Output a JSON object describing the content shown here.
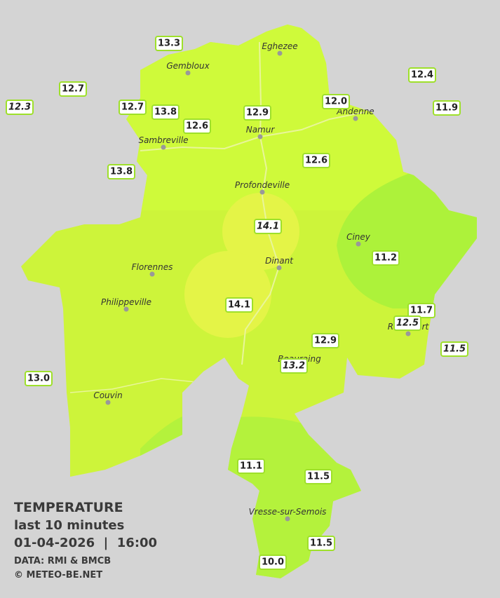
{
  "legend": {
    "title": "TEMPERATURE",
    "period": "last 10 minutes",
    "datetime": "01-04-2026  |  16:00",
    "source": "DATA: RMI & BMCB",
    "copyright": "© METEO-BE.NET"
  },
  "cities": [
    "Eghezee",
    "Gembloux",
    "Andenne",
    "Namur",
    "Sambreville",
    "Profondeville",
    "Ciney",
    "Dinant",
    "Florennes",
    "Philippeville",
    "Rochefort",
    "Beauraing",
    "Couvin",
    "Vresse-sur-Semois"
  ],
  "stations": [
    {
      "label": "13.3",
      "italic": false
    },
    {
      "label": "12.7",
      "italic": false
    },
    {
      "label": "12.3",
      "italic": true
    },
    {
      "label": "12.7",
      "italic": false
    },
    {
      "label": "13.8",
      "italic": false
    },
    {
      "label": "12.6",
      "italic": false
    },
    {
      "label": "12.9",
      "italic": false
    },
    {
      "label": "12.0",
      "italic": false
    },
    {
      "label": "12.4",
      "italic": false
    },
    {
      "label": "11.9",
      "italic": false
    },
    {
      "label": "13.8",
      "italic": false
    },
    {
      "label": "12.6",
      "italic": false
    },
    {
      "label": "14.1",
      "italic": true
    },
    {
      "label": "11.2",
      "italic": false
    },
    {
      "label": "14.1",
      "italic": false
    },
    {
      "label": "11.7",
      "italic": false
    },
    {
      "label": "12.5",
      "italic": true
    },
    {
      "label": "11.5",
      "italic": true
    },
    {
      "label": "12.9",
      "italic": false
    },
    {
      "label": "13.2",
      "italic": true
    },
    {
      "label": "13.0",
      "italic": false
    },
    {
      "label": "11.1",
      "italic": false
    },
    {
      "label": "11.5",
      "italic": false
    },
    {
      "label": "11.5",
      "italic": false
    },
    {
      "label": "10.0",
      "italic": false
    }
  ]
}
